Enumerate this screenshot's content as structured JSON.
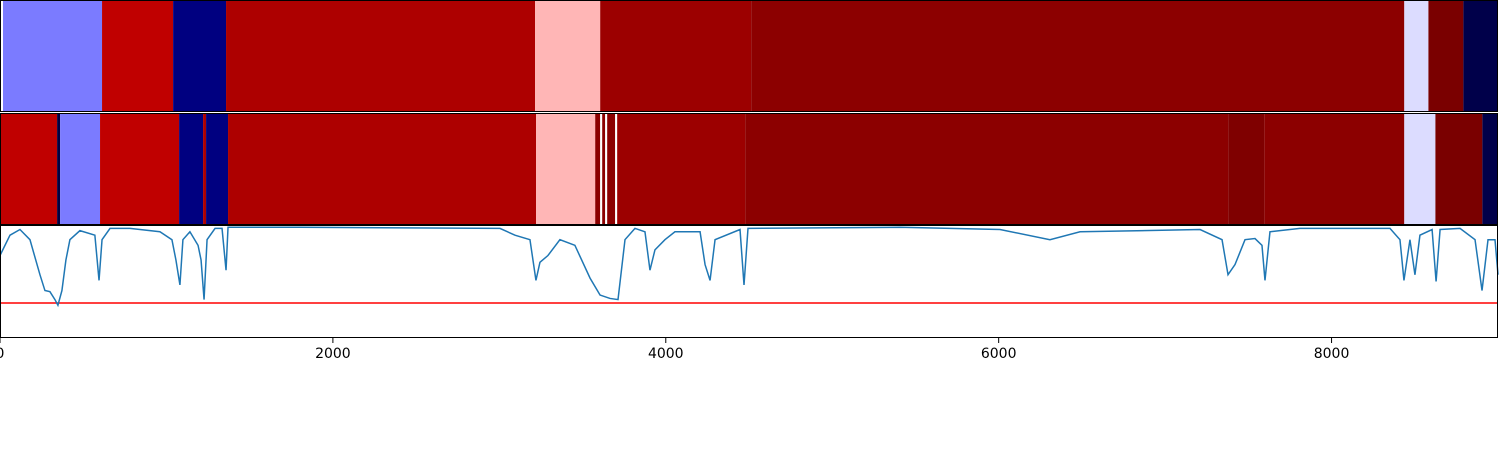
{
  "chart_data": [
    {
      "type": "segments",
      "xlim": [
        0,
        9000
      ],
      "segments": [
        {
          "start": 18,
          "end": 613,
          "color": "#7b7bff"
        },
        {
          "start": 613,
          "end": 1040,
          "color": "#c00000"
        },
        {
          "start": 1040,
          "end": 1358,
          "color": "#000080"
        },
        {
          "start": 1358,
          "end": 3215,
          "color": "#ad0000"
        },
        {
          "start": 3215,
          "end": 3606,
          "color": "#ffb6b6"
        },
        {
          "start": 3606,
          "end": 4513,
          "color": "#9c0000"
        },
        {
          "start": 4513,
          "end": 8437,
          "color": "#8c0000"
        },
        {
          "start": 8437,
          "end": 8582,
          "color": "#dcdcff"
        },
        {
          "start": 8582,
          "end": 8792,
          "color": "#7a0000"
        },
        {
          "start": 8792,
          "end": 9000,
          "color": "#00004a"
        }
      ]
    },
    {
      "type": "segments",
      "xlim": [
        0,
        9000
      ],
      "segments": [
        {
          "start": 0,
          "end": 343,
          "color": "#c00000"
        },
        {
          "start": 343,
          "end": 361,
          "color": "#000040"
        },
        {
          "start": 361,
          "end": 601,
          "color": "#7b7bff"
        },
        {
          "start": 601,
          "end": 1076,
          "color": "#c00000"
        },
        {
          "start": 1076,
          "end": 1220,
          "color": "#000080"
        },
        {
          "start": 1220,
          "end": 1238,
          "color": "#ad0000"
        },
        {
          "start": 1238,
          "end": 1370,
          "color": "#000080"
        },
        {
          "start": 1370,
          "end": 3221,
          "color": "#ad0000"
        },
        {
          "start": 3221,
          "end": 3576,
          "color": "#ffb6b6"
        },
        {
          "start": 3576,
          "end": 3606,
          "color": "#8c0000"
        },
        {
          "start": 3606,
          "end": 3618,
          "color": "#ffffff"
        },
        {
          "start": 3618,
          "end": 3636,
          "color": "#8c0000"
        },
        {
          "start": 3636,
          "end": 3648,
          "color": "#ffffff"
        },
        {
          "start": 3648,
          "end": 3696,
          "color": "#8c0000"
        },
        {
          "start": 3696,
          "end": 3708,
          "color": "#ffffff"
        },
        {
          "start": 3708,
          "end": 4477,
          "color": "#9c0000"
        },
        {
          "start": 4477,
          "end": 7380,
          "color": "#8c0000"
        },
        {
          "start": 7380,
          "end": 7596,
          "color": "#7f0000"
        },
        {
          "start": 7596,
          "end": 8437,
          "color": "#8c0000"
        },
        {
          "start": 8437,
          "end": 8624,
          "color": "#dcdcff"
        },
        {
          "start": 8624,
          "end": 8906,
          "color": "#7a0000"
        },
        {
          "start": 8906,
          "end": 9000,
          "color": "#00004a"
        }
      ]
    },
    {
      "type": "line",
      "xlim": [
        0,
        9000
      ],
      "ylim": [
        0,
        1
      ],
      "xticks": [
        0,
        2000,
        4000,
        6000,
        8000
      ],
      "threshold": 0.31,
      "threshold_color": "#ff0000",
      "x": [
        0,
        60,
        120,
        180,
        240,
        270,
        300,
        330,
        348,
        372,
        396,
        420,
        480,
        570,
        595,
        613,
        661,
        781,
        961,
        1033,
        1057,
        1081,
        1099,
        1141,
        1190,
        1208,
        1226,
        1244,
        1292,
        1334,
        1358,
        1370,
        1802,
        3004,
        3094,
        3184,
        3220,
        3244,
        3292,
        3364,
        3454,
        3545,
        3605,
        3665,
        3713,
        3755,
        3815,
        3875,
        3905,
        3935,
        3995,
        4055,
        4206,
        4236,
        4266,
        4296,
        4446,
        4470,
        4494,
        5407,
        6008,
        6308,
        6489,
        7210,
        7342,
        7378,
        7420,
        7480,
        7540,
        7582,
        7600,
        7630,
        7810,
        8351,
        8411,
        8435,
        8471,
        8501,
        8531,
        8604,
        8628,
        8652,
        8772,
        8862,
        8904,
        8940,
        8982,
        9000
      ],
      "series": [
        {
          "color": "#1f77b4",
          "values": [
            0.73,
            0.91,
            0.96,
            0.87,
            0.56,
            0.42,
            0.41,
            0.34,
            0.29,
            0.42,
            0.69,
            0.87,
            0.95,
            0.91,
            0.51,
            0.87,
            0.97,
            0.97,
            0.94,
            0.87,
            0.69,
            0.47,
            0.87,
            0.94,
            0.82,
            0.69,
            0.34,
            0.87,
            0.97,
            0.97,
            0.6,
            0.98,
            0.98,
            0.97,
            0.91,
            0.87,
            0.51,
            0.67,
            0.73,
            0.87,
            0.82,
            0.53,
            0.38,
            0.35,
            0.34,
            0.87,
            0.97,
            0.94,
            0.6,
            0.78,
            0.87,
            0.94,
            0.94,
            0.65,
            0.51,
            0.87,
            0.96,
            0.47,
            0.97,
            0.98,
            0.96,
            0.87,
            0.94,
            0.96,
            0.87,
            0.56,
            0.65,
            0.87,
            0.88,
            0.82,
            0.51,
            0.94,
            0.97,
            0.97,
            0.87,
            0.51,
            0.87,
            0.56,
            0.91,
            0.96,
            0.5,
            0.96,
            0.97,
            0.87,
            0.42,
            0.87,
            0.87,
            0.56
          ]
        }
      ]
    }
  ]
}
